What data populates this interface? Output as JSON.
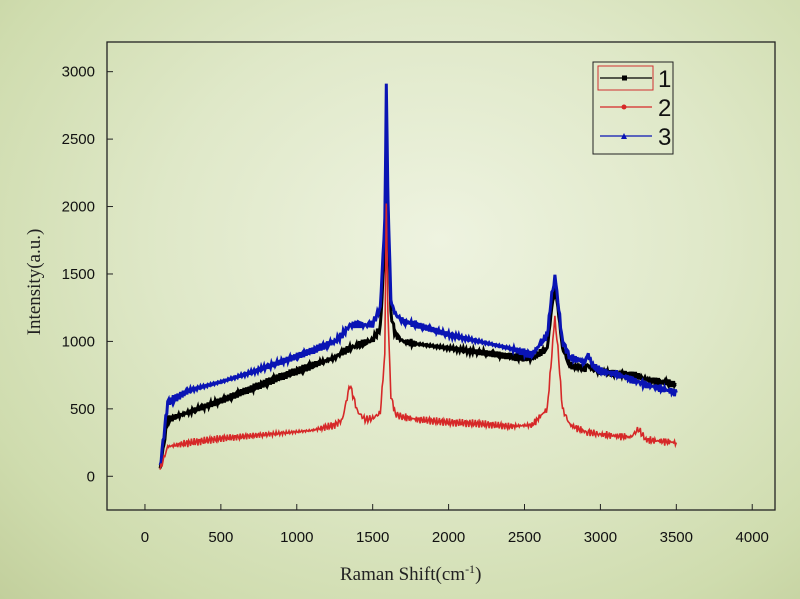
{
  "chart_data": {
    "type": "line",
    "title": "",
    "xlabel": "Raman Shift(cm",
    "xlabel_sup": "-1",
    "xlabel_close": ")",
    "ylabel": "Intensity(a.u.)",
    "xlim": [
      -250,
      4150
    ],
    "ylim": [
      -250,
      3220
    ],
    "xticks": [
      0,
      500,
      1000,
      1500,
      2000,
      2500,
      3000,
      3500,
      4000
    ],
    "yticks": [
      0,
      500,
      1000,
      1500,
      2000,
      2500,
      3000
    ],
    "grid": false,
    "legend_placement": "top-right",
    "x": [
      100,
      150,
      300,
      500,
      700,
      900,
      1100,
      1250,
      1300,
      1350,
      1400,
      1450,
      1500,
      1550,
      1580,
      1590,
      1600,
      1620,
      1650,
      1700,
      1800,
      2000,
      2200,
      2400,
      2550,
      2650,
      2680,
      2700,
      2720,
      2750,
      2800,
      2900,
      2920,
      2950,
      3000,
      3100,
      3200,
      3250,
      3300,
      3400,
      3500
    ],
    "series": [
      {
        "name": "1",
        "color": "#000000",
        "marker": "square",
        "values": [
          60,
          420,
          480,
          560,
          650,
          740,
          820,
          880,
          920,
          950,
          970,
          990,
          1010,
          1100,
          1700,
          2600,
          2000,
          1200,
          1050,
          1000,
          980,
          950,
          920,
          890,
          870,
          950,
          1250,
          1400,
          1250,
          950,
          820,
          800,
          820,
          790,
          780,
          760,
          750,
          740,
          720,
          700,
          680
        ]
      },
      {
        "name": "2",
        "color": "#d62828",
        "marker": "circle",
        "values": [
          50,
          220,
          250,
          280,
          300,
          320,
          340,
          380,
          420,
          680,
          480,
          420,
          430,
          470,
          900,
          2050,
          1200,
          600,
          460,
          440,
          420,
          400,
          390,
          370,
          380,
          500,
          900,
          1180,
          950,
          500,
          380,
          330,
          330,
          320,
          310,
          300,
          290,
          350,
          270,
          260,
          250
        ]
      },
      {
        "name": "3",
        "color": "#0a14b4",
        "marker": "triangle",
        "values": [
          70,
          550,
          640,
          700,
          770,
          850,
          930,
          1000,
          1050,
          1120,
          1130,
          1120,
          1130,
          1250,
          1900,
          2900,
          2100,
          1300,
          1200,
          1150,
          1120,
          1050,
          1000,
          950,
          900,
          1050,
          1350,
          1480,
          1300,
          1000,
          880,
          850,
          900,
          820,
          780,
          760,
          720,
          700,
          680,
          650,
          620
        ]
      }
    ]
  }
}
